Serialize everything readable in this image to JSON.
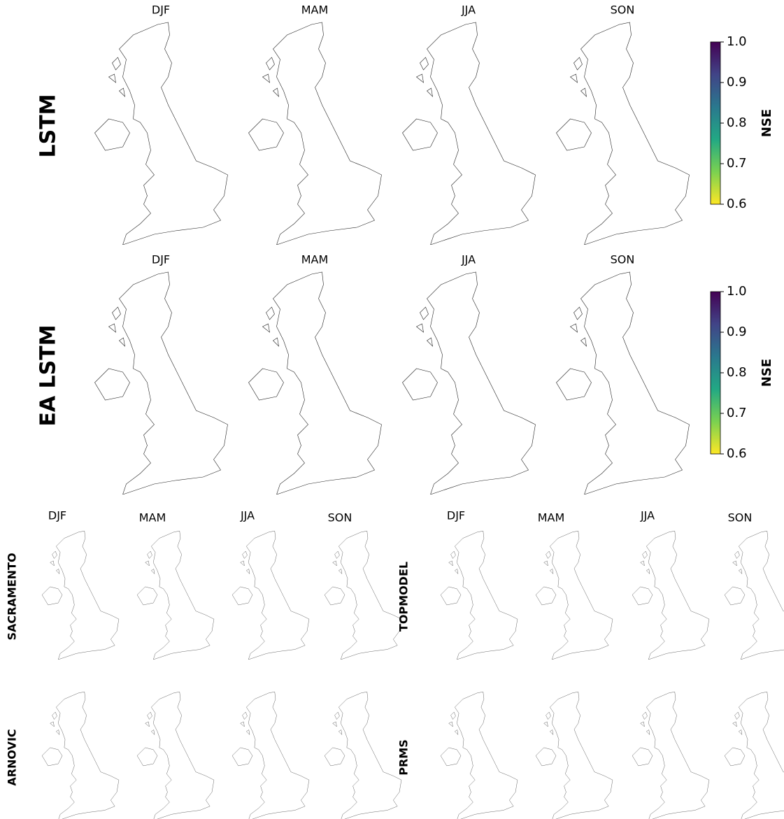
{
  "large_panels": [
    {
      "label": "LSTM",
      "seasons": [
        "DJF",
        "MAM",
        "JJA",
        "SON"
      ],
      "colorbar": {
        "title": "NSE",
        "lim": [
          0.6,
          1.0
        ],
        "ticks": [
          {
            "value": 1.0,
            "label": "1.0"
          },
          0.9,
          0.8,
          0.7,
          0.6
        ]
      }
    },
    {
      "label": "EA LSTM",
      "seasons": [
        "DJF",
        "MAM",
        "JJA",
        "SON"
      ],
      "colorbar": {
        "title": "NSE",
        "lim": [
          0.6,
          1.0
        ],
        "ticks": [
          {
            "value": 1.0,
            "label": "1.0"
          },
          0.9,
          0.8,
          0.7,
          0.6
        ]
      }
    }
  ],
  "colormap": [
    "#fde725",
    "#7ad151",
    "#22a884",
    "#2a788e",
    "#414487",
    "#440154"
  ],
  "small_panels": [
    {
      "label": "SACRAMENTO",
      "seasons": [
        "DJF",
        "MAM",
        "JJA",
        "SON"
      ]
    },
    {
      "label": "TOPMODEL",
      "seasons": [
        "DJF",
        "MAM",
        "JJA",
        "SON"
      ]
    },
    {
      "label": "ARNOVIC"
    },
    {
      "label": "PRMS"
    }
  ]
}
